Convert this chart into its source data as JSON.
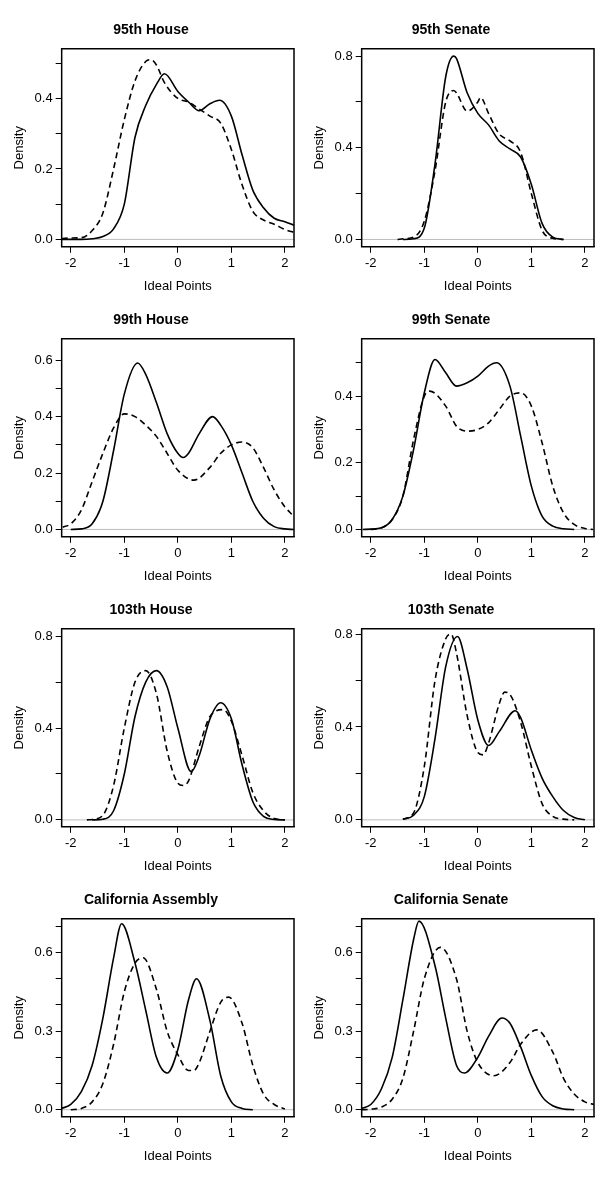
{
  "chart_data": [
    {
      "type": "line",
      "title": "95th House",
      "xlabel": "Ideal Points",
      "ylabel": "Density",
      "xlim": [
        -2.17,
        2.17
      ],
      "xticks": [
        -2,
        -1,
        0,
        1,
        2
      ],
      "ylim": [
        -0.021,
        0.541
      ],
      "yticks": [
        {
          "value": 0,
          "label": "0.0"
        },
        {
          "value": 0.1,
          "label": null
        },
        {
          "value": 0.2,
          "label": "0.2"
        },
        {
          "value": 0.3,
          "label": null
        },
        {
          "value": 0.4,
          "label": "0.4"
        },
        {
          "value": 0.5,
          "label": null
        }
      ],
      "ref_lines": [
        {
          "axis": "y",
          "value": 0,
          "color": "#bebebe"
        }
      ],
      "series": [
        {
          "color": "#000000",
          "line_style": "solid",
          "x": [
            -2.17,
            -2,
            -1.8,
            -1.6,
            -1.4,
            -1.2,
            -1,
            -0.8,
            -0.6,
            -0.4,
            -0.25,
            0,
            0.2,
            0.4,
            0.6,
            0.78,
            1,
            1.2,
            1.4,
            1.6,
            1.8,
            2,
            2.17
          ],
          "values": [
            0,
            0,
            0,
            0.002,
            0.008,
            0.03,
            0.1,
            0.29,
            0.38,
            0.44,
            0.47,
            0.42,
            0.39,
            0.365,
            0.385,
            0.395,
            0.35,
            0.24,
            0.14,
            0.09,
            0.06,
            0.05,
            0.04
          ]
        },
        {
          "color": "#000000",
          "line_style": "dashed",
          "x": [
            -2.17,
            -2,
            -1.8,
            -1.6,
            -1.4,
            -1.2,
            -1,
            -0.8,
            -0.6,
            -0.5,
            -0.4,
            -0.25,
            0,
            0.2,
            0.4,
            0.6,
            0.8,
            1,
            1.2,
            1.4,
            1.6,
            1.8,
            2,
            2.17
          ],
          "values": [
            0.002,
            0.004,
            0.005,
            0.025,
            0.075,
            0.2,
            0.34,
            0.45,
            0.505,
            0.51,
            0.495,
            0.445,
            0.4,
            0.39,
            0.37,
            0.35,
            0.33,
            0.255,
            0.155,
            0.08,
            0.055,
            0.043,
            0.028,
            0.02
          ]
        }
      ]
    },
    {
      "type": "line",
      "title": "95th Senate",
      "xlabel": "Ideal Points",
      "ylabel": "Density",
      "xlim": [
        -2.17,
        2.17
      ],
      "xticks": [
        -2,
        -1,
        0,
        1,
        2
      ],
      "ylim": [
        -0.032,
        0.832
      ],
      "yticks": [
        {
          "value": 0,
          "label": "0.0"
        },
        {
          "value": 0.2,
          "label": null
        },
        {
          "value": 0.4,
          "label": "0.4"
        },
        {
          "value": 0.6,
          "label": null
        },
        {
          "value": 0.8,
          "label": "0.8"
        }
      ],
      "ref_lines": [
        {
          "axis": "y",
          "value": 0,
          "color": "#bebebe"
        }
      ],
      "series": [
        {
          "color": "#000000",
          "line_style": "solid",
          "x": [
            -1.4,
            -1.2,
            -1,
            -0.8,
            -0.6,
            -0.45,
            -0.4,
            -0.2,
            0,
            0.2,
            0.4,
            0.6,
            0.8,
            1,
            1.2,
            1.4,
            1.6
          ],
          "values": [
            0,
            0.003,
            0.05,
            0.33,
            0.71,
            0.8,
            0.79,
            0.64,
            0.55,
            0.5,
            0.43,
            0.395,
            0.36,
            0.24,
            0.07,
            0.01,
            0
          ]
        },
        {
          "color": "#000000",
          "line_style": "dashed",
          "x": [
            -1.5,
            -1.4,
            -1.2,
            -1,
            -0.8,
            -0.6,
            -0.45,
            -0.4,
            -0.2,
            0,
            0.05,
            0.2,
            0.4,
            0.6,
            0.8,
            1,
            1.2,
            1.4,
            1.6
          ],
          "values": [
            0,
            0.003,
            0.01,
            0.08,
            0.3,
            0.6,
            0.65,
            0.64,
            0.56,
            0.6,
            0.62,
            0.55,
            0.46,
            0.43,
            0.38,
            0.2,
            0.04,
            0.005,
            0
          ]
        }
      ]
    },
    {
      "type": "line",
      "title": "99th House",
      "xlabel": "Ideal Points",
      "ylabel": "Density",
      "xlim": [
        -2.17,
        2.17
      ],
      "xticks": [
        -2,
        -1,
        0,
        1,
        2
      ],
      "ylim": [
        -0.026,
        0.676
      ],
      "yticks": [
        {
          "value": 0,
          "label": "0.0"
        },
        {
          "value": 0.1,
          "label": null
        },
        {
          "value": 0.2,
          "label": "0.2"
        },
        {
          "value": 0.3,
          "label": null
        },
        {
          "value": 0.4,
          "label": "0.4"
        },
        {
          "value": 0.5,
          "label": null
        },
        {
          "value": 0.6,
          "label": "0.6"
        }
      ],
      "ref_lines": [
        {
          "axis": "y",
          "value": 0,
          "color": "#bebebe"
        }
      ],
      "series": [
        {
          "color": "#000000",
          "line_style": "solid",
          "x": [
            -2,
            -1.8,
            -1.6,
            -1.4,
            -1.2,
            -1,
            -0.75,
            -0.6,
            -0.4,
            -0.2,
            0,
            0.1,
            0.2,
            0.4,
            0.65,
            0.8,
            1,
            1.2,
            1.4,
            1.6,
            1.8,
            2,
            2.17
          ],
          "values": [
            0,
            0.002,
            0.02,
            0.1,
            0.28,
            0.48,
            0.59,
            0.55,
            0.45,
            0.34,
            0.27,
            0.255,
            0.27,
            0.34,
            0.4,
            0.37,
            0.3,
            0.2,
            0.1,
            0.04,
            0.01,
            0.002,
            0
          ]
        },
        {
          "color": "#000000",
          "line_style": "dashed",
          "x": [
            -2.15,
            -2,
            -1.8,
            -1.6,
            -1.4,
            -1.2,
            -1,
            -0.8,
            -0.6,
            -0.4,
            -0.2,
            0,
            0.3,
            0.6,
            0.8,
            1,
            1.2,
            1.4,
            1.6,
            1.8,
            2,
            2.15
          ],
          "values": [
            0.008,
            0.02,
            0.07,
            0.17,
            0.27,
            0.36,
            0.41,
            0.4,
            0.37,
            0.33,
            0.27,
            0.21,
            0.175,
            0.22,
            0.27,
            0.3,
            0.31,
            0.29,
            0.22,
            0.14,
            0.08,
            0.05
          ]
        }
      ]
    },
    {
      "type": "line",
      "title": "99th Senate",
      "xlabel": "Ideal Points",
      "ylabel": "Density",
      "xlim": [
        -2.17,
        2.17
      ],
      "xticks": [
        -2,
        -1,
        0,
        1,
        2
      ],
      "ylim": [
        -0.022,
        0.572
      ],
      "yticks": [
        {
          "value": 0,
          "label": "0.0"
        },
        {
          "value": 0.1,
          "label": null
        },
        {
          "value": 0.2,
          "label": "0.2"
        },
        {
          "value": 0.3,
          "label": null
        },
        {
          "value": 0.4,
          "label": "0.4"
        },
        {
          "value": 0.5,
          "label": null
        }
      ],
      "ref_lines": [
        {
          "axis": "y",
          "value": 0,
          "color": "#bebebe"
        }
      ],
      "series": [
        {
          "color": "#000000",
          "line_style": "solid",
          "x": [
            -2.15,
            -2,
            -1.8,
            -1.6,
            -1.4,
            -1.2,
            -1,
            -0.8,
            -0.6,
            -0.4,
            -0.2,
            0,
            0.2,
            0.35,
            0.6,
            0.8,
            1,
            1.2,
            1.4,
            1.6,
            1.8
          ],
          "values": [
            0,
            0.001,
            0.005,
            0.03,
            0.1,
            0.24,
            0.41,
            0.51,
            0.47,
            0.43,
            0.44,
            0.46,
            0.49,
            0.5,
            0.43,
            0.28,
            0.13,
            0.04,
            0.01,
            0.002,
            0
          ]
        },
        {
          "color": "#000000",
          "line_style": "dashed",
          "x": [
            -2,
            -1.8,
            -1.6,
            -1.4,
            -1.2,
            -1,
            -0.9,
            -0.6,
            -0.4,
            -0.2,
            0,
            0.2,
            0.4,
            0.6,
            0.8,
            1,
            1.2,
            1.4,
            1.6,
            1.8,
            2,
            2.15
          ],
          "values": [
            0,
            0.005,
            0.03,
            0.1,
            0.27,
            0.4,
            0.415,
            0.37,
            0.31,
            0.295,
            0.3,
            0.32,
            0.36,
            0.4,
            0.41,
            0.37,
            0.26,
            0.13,
            0.05,
            0.015,
            0.003,
            0
          ]
        }
      ]
    },
    {
      "type": "line",
      "title": "103th House",
      "xlabel": "Ideal Points",
      "ylabel": "Density",
      "xlim": [
        -2.17,
        2.17
      ],
      "xticks": [
        -2,
        -1,
        0,
        1,
        2
      ],
      "ylim": [
        -0.03,
        0.832
      ],
      "yticks": [
        {
          "value": 0,
          "label": "0.0"
        },
        {
          "value": 0.2,
          "label": null
        },
        {
          "value": 0.4,
          "label": "0.4"
        },
        {
          "value": 0.6,
          "label": null
        },
        {
          "value": 0.8,
          "label": "0.8"
        }
      ],
      "ref_lines": [
        {
          "axis": "y",
          "value": 0,
          "color": "#bebebe"
        }
      ],
      "series": [
        {
          "color": "#000000",
          "line_style": "solid",
          "x": [
            -1.6,
            -1.4,
            -1.2,
            -1,
            -0.8,
            -0.6,
            -0.4,
            -0.2,
            0,
            0.25,
            0.4,
            0.6,
            0.8,
            1,
            1.2,
            1.4,
            1.6,
            1.8,
            2
          ],
          "values": [
            0,
            0.003,
            0.04,
            0.2,
            0.45,
            0.6,
            0.65,
            0.58,
            0.4,
            0.21,
            0.28,
            0.44,
            0.51,
            0.44,
            0.24,
            0.08,
            0.015,
            0.002,
            0
          ]
        },
        {
          "color": "#000000",
          "line_style": "dashed",
          "x": [
            -1.7,
            -1.6,
            -1.4,
            -1.2,
            -1,
            -0.8,
            -0.6,
            -0.4,
            -0.2,
            0,
            0.1,
            0.2,
            0.4,
            0.6,
            0.85,
            1,
            1.2,
            1.4,
            1.6,
            1.8,
            2
          ],
          "values": [
            0,
            0.002,
            0.02,
            0.15,
            0.4,
            0.6,
            0.65,
            0.55,
            0.3,
            0.16,
            0.15,
            0.17,
            0.32,
            0.45,
            0.48,
            0.43,
            0.28,
            0.12,
            0.04,
            0.006,
            0
          ]
        }
      ]
    },
    {
      "type": "line",
      "title": "103th Senate",
      "xlabel": "Ideal Points",
      "ylabel": "Density",
      "xlim": [
        -2.17,
        2.17
      ],
      "xticks": [
        -2,
        -1,
        0,
        1,
        2
      ],
      "ylim": [
        -0.03,
        0.823
      ],
      "yticks": [
        {
          "value": 0,
          "label": "0.0"
        },
        {
          "value": 0.2,
          "label": null
        },
        {
          "value": 0.4,
          "label": "0.4"
        },
        {
          "value": 0.6,
          "label": null
        },
        {
          "value": 0.8,
          "label": "0.8"
        }
      ],
      "ref_lines": [
        {
          "axis": "y",
          "value": 0,
          "color": "#bebebe"
        }
      ],
      "series": [
        {
          "color": "#000000",
          "line_style": "solid",
          "x": [
            -1.4,
            -1.2,
            -1,
            -0.8,
            -0.6,
            -0.38,
            -0.2,
            0,
            0.2,
            0.4,
            0.7,
            0.8,
            1,
            1.2,
            1.4,
            1.6,
            1.8,
            2
          ],
          "values": [
            0.003,
            0.02,
            0.1,
            0.35,
            0.66,
            0.79,
            0.65,
            0.43,
            0.32,
            0.38,
            0.47,
            0.44,
            0.3,
            0.18,
            0.1,
            0.04,
            0.01,
            0
          ]
        },
        {
          "color": "#000000",
          "line_style": "dashed",
          "x": [
            -1.4,
            -1.2,
            -1,
            -0.8,
            -0.6,
            -0.5,
            -0.4,
            -0.2,
            0,
            0.1,
            0.2,
            0.4,
            0.5,
            0.6,
            0.8,
            1,
            1.2,
            1.4,
            1.6,
            1.8
          ],
          "values": [
            0.002,
            0.03,
            0.23,
            0.6,
            0.78,
            0.8,
            0.72,
            0.45,
            0.29,
            0.28,
            0.33,
            0.5,
            0.55,
            0.54,
            0.42,
            0.23,
            0.07,
            0.015,
            0.003,
            0
          ]
        }
      ]
    },
    {
      "type": "line",
      "title": "California Assembly",
      "xlabel": "Ideal Points",
      "ylabel": "Density",
      "xlim": [
        -2.17,
        2.17
      ],
      "xticks": [
        -2,
        -1,
        0,
        1,
        2
      ],
      "ylim": [
        -0.027,
        0.729
      ],
      "yticks": [
        {
          "value": 0,
          "label": "0.0"
        },
        {
          "value": 0.1,
          "label": null
        },
        {
          "value": 0.2,
          "label": null
        },
        {
          "value": 0.3,
          "label": "0.3"
        },
        {
          "value": 0.4,
          "label": null
        },
        {
          "value": 0.5,
          "label": null
        },
        {
          "value": 0.6,
          "label": "0.6"
        },
        {
          "value": 0.7,
          "label": null
        }
      ],
      "ref_lines": [
        {
          "axis": "y",
          "value": 0,
          "color": "#bebebe"
        }
      ],
      "series": [
        {
          "color": "#000000",
          "line_style": "solid",
          "x": [
            -2.17,
            -2,
            -1.8,
            -1.6,
            -1.4,
            -1.2,
            -1.05,
            -0.8,
            -0.6,
            -0.4,
            -0.2,
            0,
            0.2,
            0.35,
            0.6,
            0.8,
            1,
            1.2,
            1.4
          ],
          "values": [
            0.005,
            0.02,
            0.07,
            0.17,
            0.35,
            0.58,
            0.71,
            0.56,
            0.38,
            0.2,
            0.14,
            0.23,
            0.42,
            0.5,
            0.34,
            0.13,
            0.03,
            0.005,
            0
          ]
        },
        {
          "color": "#000000",
          "line_style": "dashed",
          "x": [
            -2,
            -1.8,
            -1.6,
            -1.4,
            -1.2,
            -1,
            -0.8,
            -0.65,
            -0.4,
            -0.2,
            0,
            0.2,
            0.3,
            0.4,
            0.6,
            0.8,
            0.95,
            1.2,
            1.4,
            1.6,
            1.8,
            2
          ],
          "values": [
            0,
            0.005,
            0.03,
            0.1,
            0.25,
            0.45,
            0.56,
            0.58,
            0.46,
            0.3,
            0.21,
            0.15,
            0.15,
            0.18,
            0.3,
            0.41,
            0.43,
            0.33,
            0.17,
            0.06,
            0.02,
            0.003
          ]
        }
      ]
    },
    {
      "type": "line",
      "title": "California Senate",
      "xlabel": "Ideal Points",
      "ylabel": "Density",
      "xlim": [
        -2.17,
        2.17
      ],
      "xticks": [
        -2,
        -1,
        0,
        1,
        2
      ],
      "ylim": [
        -0.027,
        0.729
      ],
      "yticks": [
        {
          "value": 0,
          "label": "0.0"
        },
        {
          "value": 0.1,
          "label": null
        },
        {
          "value": 0.2,
          "label": null
        },
        {
          "value": 0.3,
          "label": "0.3"
        },
        {
          "value": 0.4,
          "label": null
        },
        {
          "value": 0.5,
          "label": null
        },
        {
          "value": 0.6,
          "label": "0.6"
        },
        {
          "value": 0.7,
          "label": null
        }
      ],
      "ref_lines": [
        {
          "axis": "y",
          "value": 0,
          "color": "#bebebe"
        }
      ],
      "series": [
        {
          "color": "#000000",
          "line_style": "solid",
          "x": [
            -2.17,
            -2,
            -1.8,
            -1.6,
            -1.4,
            -1.2,
            -1.1,
            -0.8,
            -0.6,
            -0.4,
            -0.25,
            0,
            0.2,
            0.45,
            0.6,
            0.8,
            1,
            1.2,
            1.4,
            1.6,
            1.8
          ],
          "values": [
            0.005,
            0.02,
            0.08,
            0.2,
            0.42,
            0.65,
            0.72,
            0.55,
            0.35,
            0.17,
            0.14,
            0.2,
            0.28,
            0.35,
            0.33,
            0.24,
            0.13,
            0.05,
            0.015,
            0.003,
            0
          ]
        },
        {
          "color": "#000000",
          "line_style": "dashed",
          "x": [
            -2.17,
            -2,
            -1.8,
            -1.6,
            -1.4,
            -1.2,
            -1,
            -0.7,
            -0.4,
            -0.2,
            0,
            0.3,
            0.6,
            0.8,
            1.1,
            1.4,
            1.6,
            1.8,
            2,
            2.17
          ],
          "values": [
            0,
            0.002,
            0.01,
            0.04,
            0.12,
            0.3,
            0.5,
            0.62,
            0.5,
            0.3,
            0.18,
            0.13,
            0.18,
            0.25,
            0.305,
            0.22,
            0.12,
            0.06,
            0.03,
            0.02
          ]
        }
      ]
    }
  ]
}
